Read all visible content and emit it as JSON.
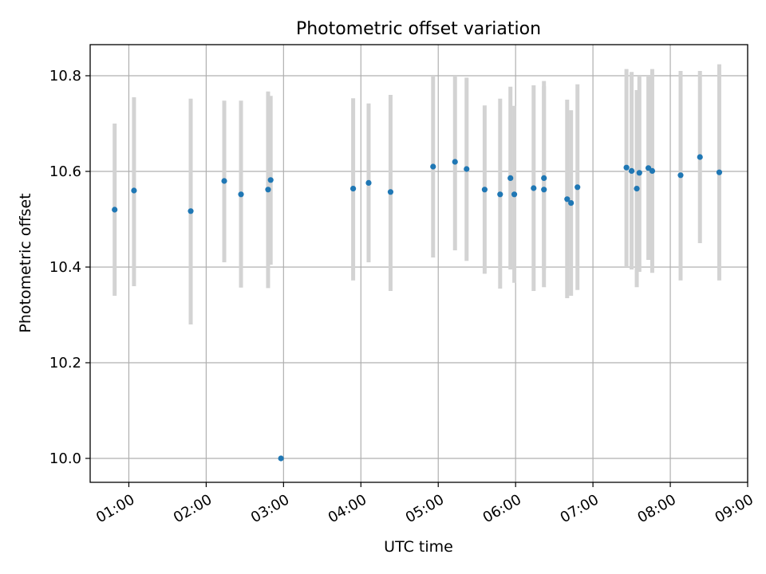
{
  "chart_data": {
    "type": "scatter",
    "title": "Photometric offset variation",
    "xlabel": "UTC time",
    "ylabel": "Photometric offset",
    "xlim": [
      "00:30",
      "09:00"
    ],
    "ylim": [
      9.95,
      10.865
    ],
    "grid": true,
    "x_ticks": [
      "01:00",
      "02:00",
      "03:00",
      "04:00",
      "05:00",
      "06:00",
      "07:00",
      "08:00",
      "09:00"
    ],
    "y_ticks": [
      "10.0",
      "10.2",
      "10.4",
      "10.6",
      "10.8"
    ],
    "marker_color": "#1f77b4",
    "errorbar_color": "#d3d3d3",
    "points": [
      {
        "time": "00:49",
        "y": 10.52,
        "lo": 10.34,
        "hi": 10.7
      },
      {
        "time": "01:04",
        "y": 10.56,
        "lo": 10.36,
        "hi": 10.755
      },
      {
        "time": "01:48",
        "y": 10.517,
        "lo": 10.28,
        "hi": 10.752
      },
      {
        "time": "02:14",
        "y": 10.58,
        "lo": 10.41,
        "hi": 10.748
      },
      {
        "time": "02:27",
        "y": 10.552,
        "lo": 10.357,
        "hi": 10.748
      },
      {
        "time": "02:48",
        "y": 10.562,
        "lo": 10.356,
        "hi": 10.767
      },
      {
        "time": "02:50",
        "y": 10.582,
        "lo": 10.405,
        "hi": 10.758
      },
      {
        "time": "02:58",
        "y": 10.0,
        "lo": 10.0,
        "hi": 10.0
      },
      {
        "time": "03:54",
        "y": 10.564,
        "lo": 10.372,
        "hi": 10.753
      },
      {
        "time": "04:06",
        "y": 10.576,
        "lo": 10.41,
        "hi": 10.742
      },
      {
        "time": "04:23",
        "y": 10.557,
        "lo": 10.35,
        "hi": 10.76
      },
      {
        "time": "04:56",
        "y": 10.61,
        "lo": 10.42,
        "hi": 10.8
      },
      {
        "time": "05:13",
        "y": 10.62,
        "lo": 10.435,
        "hi": 10.8
      },
      {
        "time": "05:22",
        "y": 10.605,
        "lo": 10.413,
        "hi": 10.796
      },
      {
        "time": "05:36",
        "y": 10.562,
        "lo": 10.386,
        "hi": 10.738
      },
      {
        "time": "05:48",
        "y": 10.552,
        "lo": 10.355,
        "hi": 10.752
      },
      {
        "time": "05:56",
        "y": 10.586,
        "lo": 10.395,
        "hi": 10.777
      },
      {
        "time": "05:59",
        "y": 10.552,
        "lo": 10.367,
        "hi": 10.737
      },
      {
        "time": "06:14",
        "y": 10.565,
        "lo": 10.35,
        "hi": 10.78
      },
      {
        "time": "06:22",
        "y": 10.586,
        "lo": 10.395,
        "hi": 10.778
      },
      {
        "time": "06:22",
        "y": 10.562,
        "lo": 10.358,
        "hi": 10.789
      },
      {
        "time": "06:40",
        "y": 10.542,
        "lo": 10.335,
        "hi": 10.75
      },
      {
        "time": "06:43",
        "y": 10.534,
        "lo": 10.34,
        "hi": 10.728
      },
      {
        "time": "06:48",
        "y": 10.567,
        "lo": 10.352,
        "hi": 10.782
      },
      {
        "time": "07:26",
        "y": 10.608,
        "lo": 10.4,
        "hi": 10.814
      },
      {
        "time": "07:30",
        "y": 10.601,
        "lo": 10.395,
        "hi": 10.808
      },
      {
        "time": "07:34",
        "y": 10.564,
        "lo": 10.358,
        "hi": 10.77
      },
      {
        "time": "07:36",
        "y": 10.597,
        "lo": 10.39,
        "hi": 10.8
      },
      {
        "time": "07:43",
        "y": 10.607,
        "lo": 10.415,
        "hi": 10.8
      },
      {
        "time": "07:46",
        "y": 10.601,
        "lo": 10.388,
        "hi": 10.814
      },
      {
        "time": "08:08",
        "y": 10.592,
        "lo": 10.372,
        "hi": 10.81
      },
      {
        "time": "08:23",
        "y": 10.63,
        "lo": 10.45,
        "hi": 10.81
      },
      {
        "time": "08:38",
        "y": 10.598,
        "lo": 10.372,
        "hi": 10.824
      }
    ]
  }
}
